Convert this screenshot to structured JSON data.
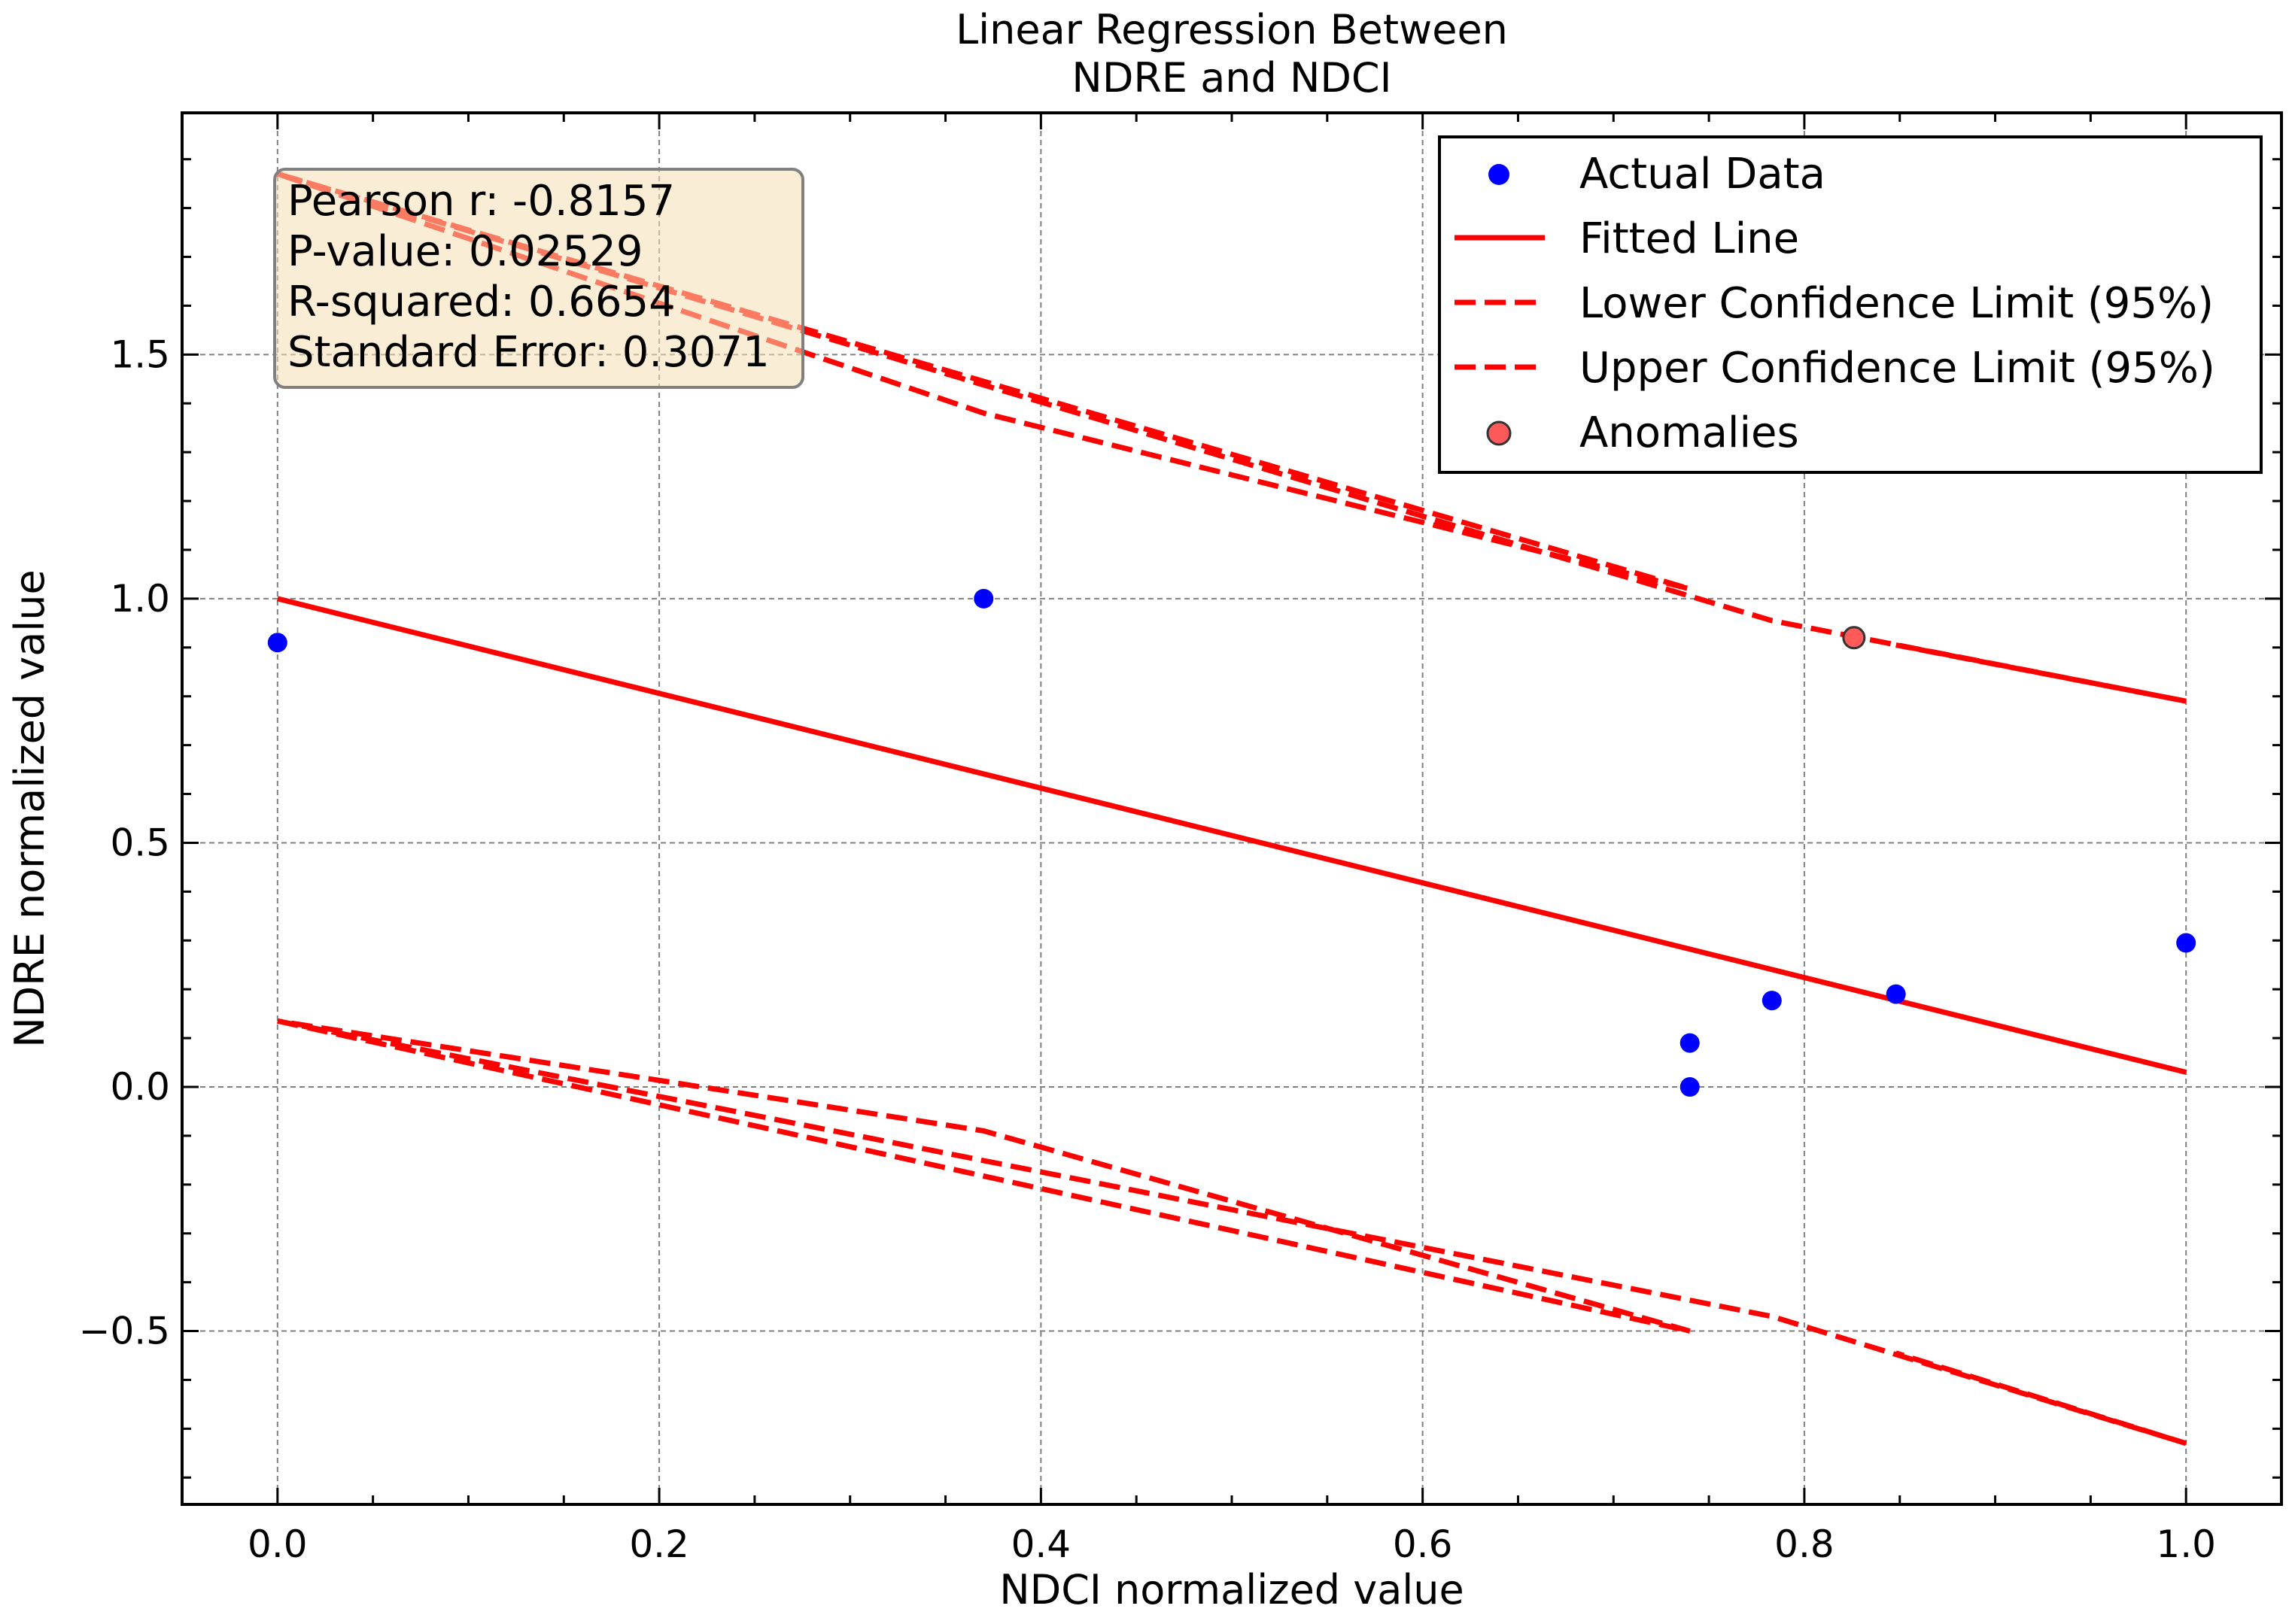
{
  "chart_data": {
    "type": "scatter",
    "title": "Linear Regression Between\nNDRE and NDCI",
    "xlabel": "NDCI normalized value",
    "ylabel": "NDRE normalized value",
    "xlim": [
      -0.05,
      1.05
    ],
    "ylim": [
      -0.855,
      1.995
    ],
    "xticks": [
      0.0,
      0.2,
      0.4,
      0.6,
      0.8,
      1.0
    ],
    "xtick_labels": [
      "0.0",
      "0.2",
      "0.4",
      "0.6",
      "0.8",
      "1.0"
    ],
    "yticks": [
      -0.5,
      0.0,
      0.5,
      1.0,
      1.5
    ],
    "ytick_labels": [
      "−0.5",
      "0.0",
      "0.5",
      "1.0",
      "1.5"
    ],
    "grid": true,
    "legend_position": "top-right",
    "series": [
      {
        "name": "Actual Data",
        "kind": "scatter",
        "color": "#0000ff",
        "x": [
          0.0,
          0.37,
          0.74,
          0.74,
          0.783,
          0.848,
          1.0
        ],
        "y": [
          0.91,
          1.0,
          0.09,
          0.0,
          0.177,
          0.19,
          0.295
        ]
      },
      {
        "name": "Fitted Line",
        "kind": "line",
        "color": "#ff0000",
        "style": "solid",
        "x": [
          0.0,
          1.0
        ],
        "y": [
          1.0,
          0.03
        ]
      },
      {
        "name": "Lower Confidence Limit (95%)",
        "kind": "line",
        "color": "#ff0000",
        "style": "dashed",
        "x": [
          0.0,
          0.74,
          0.74,
          0.37,
          0.0,
          0.783,
          1.0,
          0.848
        ],
        "y": [
          0.135,
          -0.5,
          -0.5,
          -0.09,
          0.135,
          -0.47,
          -0.73,
          -0.545
        ]
      },
      {
        "name": "Upper Confidence Limit (95%)",
        "kind": "line",
        "color": "#ff0000",
        "style": "dashed",
        "x": [
          0.0,
          0.74,
          0.74,
          0.37,
          0.0,
          0.783,
          1.0,
          0.848
        ],
        "y": [
          1.87,
          1.02,
          1.02,
          1.38,
          1.87,
          0.955,
          0.79,
          0.905
        ]
      },
      {
        "name": "Anomalies",
        "kind": "scatter",
        "color": "#ff5a5a",
        "edge_color": "#333333",
        "x": [
          0.826
        ],
        "y": [
          0.92
        ]
      }
    ],
    "stats_box": {
      "lines": [
        "Pearson r: -0.8157",
        "P-value: 0.02529",
        "R-squared: 0.6654",
        "Standard Error: 0.3071"
      ],
      "background": "#f5deb3",
      "border": "#808080"
    }
  }
}
